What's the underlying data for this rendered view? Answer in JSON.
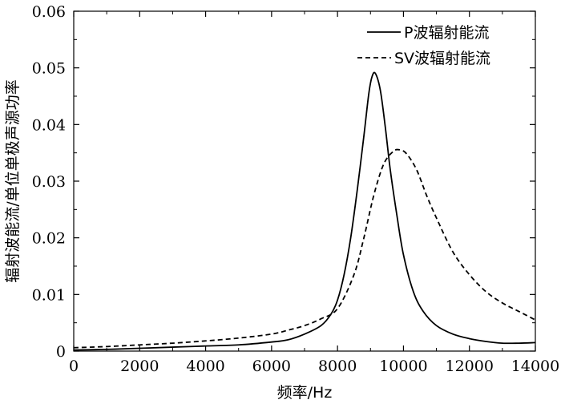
{
  "chart_data": {
    "type": "line",
    "title": "",
    "xlabel": "频率/Hz",
    "ylabel": "辐射波能流/单位单极声源功率",
    "xlim": [
      0,
      14000
    ],
    "ylim": [
      0,
      0.06
    ],
    "x_ticks": [
      "0",
      "2000",
      "4000",
      "6000",
      "8000",
      "10000",
      "12000",
      "14000"
    ],
    "y_ticks": [
      "0",
      "0.01",
      "0.02",
      "0.03",
      "0.04",
      "0.05",
      "0.06"
    ],
    "x_tick_values": [
      0,
      2000,
      4000,
      6000,
      8000,
      10000,
      12000,
      14000
    ],
    "y_tick_values": [
      0,
      0.01,
      0.02,
      0.03,
      0.04,
      0.05,
      0.06
    ],
    "grid": false,
    "legend_position": "top-right",
    "series": [
      {
        "name": "P波辐射能流",
        "style": "solid",
        "color": "#000000",
        "x": [
          0,
          1000,
          2000,
          3000,
          4000,
          5000,
          6000,
          6500,
          7000,
          7500,
          7800,
          8000,
          8200,
          8400,
          8600,
          8800,
          8950,
          9050,
          9150,
          9300,
          9450,
          9600,
          9800,
          10000,
          10300,
          10600,
          11000,
          11500,
          12000,
          12500,
          13000,
          13500,
          14000
        ],
        "y": [
          0.0002,
          0.0003,
          0.0005,
          0.0007,
          0.0009,
          0.0011,
          0.0016,
          0.002,
          0.003,
          0.0045,
          0.0065,
          0.009,
          0.0135,
          0.02,
          0.0285,
          0.038,
          0.0455,
          0.0485,
          0.049,
          0.046,
          0.0395,
          0.032,
          0.024,
          0.017,
          0.0105,
          0.007,
          0.0045,
          0.003,
          0.0022,
          0.0017,
          0.0014,
          0.0014,
          0.0015
        ]
      },
      {
        "name": "SV波辐射能流",
        "style": "dashed",
        "color": "#000000",
        "x": [
          0,
          1000,
          2000,
          3000,
          4000,
          5000,
          6000,
          6500,
          7000,
          7500,
          8000,
          8500,
          8800,
          9100,
          9400,
          9700,
          9900,
          10100,
          10400,
          10700,
          11000,
          11500,
          12000,
          12500,
          13000,
          13500,
          14000
        ],
        "y": [
          0.0006,
          0.0008,
          0.0011,
          0.0014,
          0.0018,
          0.0023,
          0.003,
          0.0037,
          0.0045,
          0.0057,
          0.0075,
          0.0135,
          0.02,
          0.0275,
          0.033,
          0.0353,
          0.0355,
          0.0348,
          0.032,
          0.0275,
          0.0235,
          0.0175,
          0.0135,
          0.0105,
          0.0085,
          0.007,
          0.0055
        ]
      }
    ]
  }
}
